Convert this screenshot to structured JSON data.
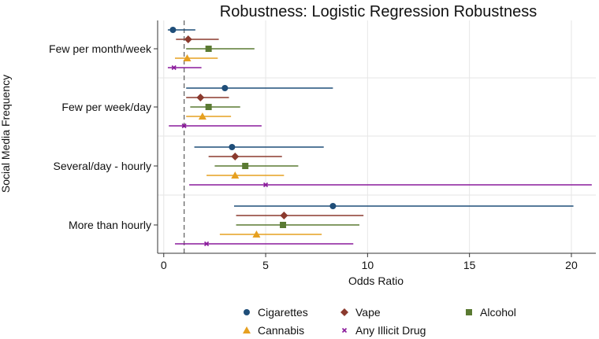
{
  "chart_data": {
    "type": "forest",
    "title": "Robustness: Logistic Regression Robustness",
    "xlabel": "Odds Ratio",
    "ylabel": "Social Media Frequency",
    "xlim": [
      -0.3,
      21.2
    ],
    "xticks": [
      0,
      5,
      10,
      15,
      20
    ],
    "xtick_labels": [
      "0",
      "5",
      "10",
      "15",
      "20"
    ],
    "reference_line": 1,
    "grid": true,
    "legend_position": "bottom",
    "categories": [
      "Few per month/week",
      "Few per week/day",
      "Several/day - hourly",
      "More than hourly"
    ],
    "series": [
      {
        "name": "Cigarettes",
        "color": "#1f4e79",
        "marker": "circle",
        "points": [
          {
            "or": 0.45,
            "lo": 0.2,
            "hi": 1.55
          },
          {
            "or": 3.0,
            "lo": 1.1,
            "hi": 8.3
          },
          {
            "or": 3.35,
            "lo": 1.5,
            "hi": 7.85
          },
          {
            "or": 8.3,
            "lo": 3.45,
            "hi": 20.1
          }
        ]
      },
      {
        "name": "Vape",
        "color": "#8b3a2e",
        "marker": "diamond",
        "points": [
          {
            "or": 1.2,
            "lo": 0.6,
            "hi": 2.7
          },
          {
            "or": 1.8,
            "lo": 1.1,
            "hi": 3.2
          },
          {
            "or": 3.5,
            "lo": 2.2,
            "hi": 5.8
          },
          {
            "or": 5.9,
            "lo": 3.55,
            "hi": 9.8
          }
        ]
      },
      {
        "name": "Alcohol",
        "color": "#5a7a32",
        "marker": "square",
        "points": [
          {
            "or": 2.2,
            "lo": 1.1,
            "hi": 4.45
          },
          {
            "or": 2.2,
            "lo": 1.3,
            "hi": 3.75
          },
          {
            "or": 4.0,
            "lo": 2.5,
            "hi": 6.6
          },
          {
            "or": 5.85,
            "lo": 3.55,
            "hi": 9.6
          }
        ]
      },
      {
        "name": "Cannabis",
        "color": "#e6a020",
        "marker": "triangle",
        "points": [
          {
            "or": 1.15,
            "lo": 0.55,
            "hi": 2.65
          },
          {
            "or": 1.9,
            "lo": 1.1,
            "hi": 3.3
          },
          {
            "or": 3.5,
            "lo": 2.1,
            "hi": 5.9
          },
          {
            "or": 4.55,
            "lo": 2.75,
            "hi": 7.75
          }
        ]
      },
      {
        "name": "Any Illicit Drug",
        "color": "#8a1a9b",
        "marker": "x",
        "points": [
          {
            "or": 0.5,
            "lo": 0.2,
            "hi": 1.85
          },
          {
            "or": 1.0,
            "lo": 0.25,
            "hi": 4.8
          },
          {
            "or": 5.0,
            "lo": 1.25,
            "hi": 21.0
          },
          {
            "or": 2.1,
            "lo": 0.55,
            "hi": 9.3
          }
        ]
      }
    ]
  }
}
